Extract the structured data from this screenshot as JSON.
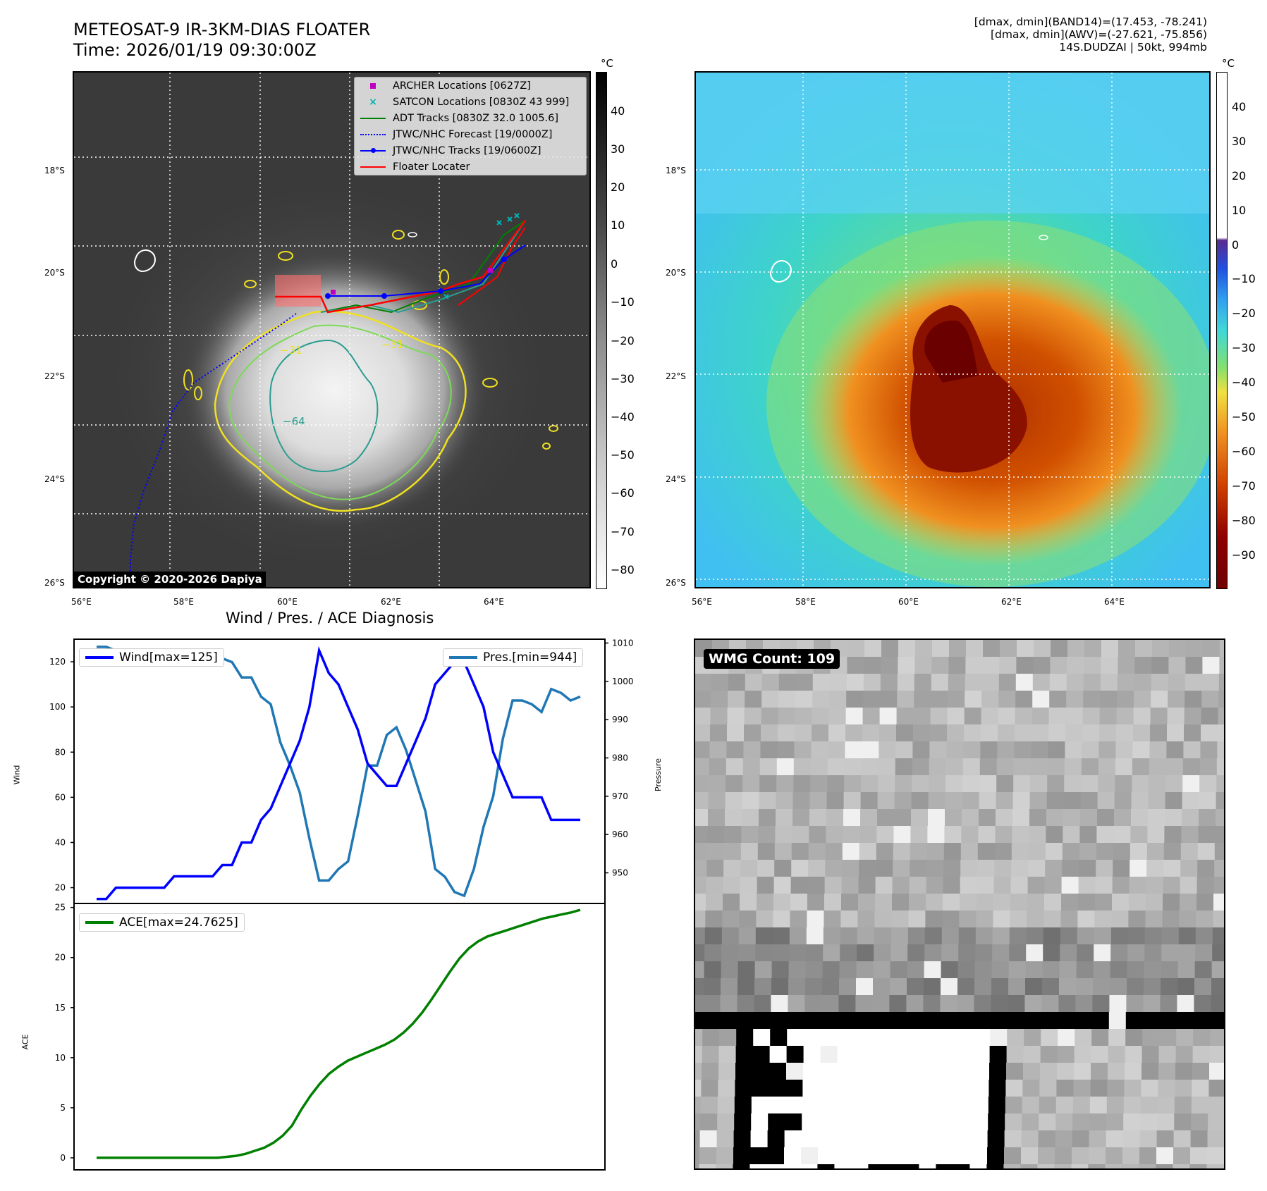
{
  "header": {
    "title_line1": "METEOSAT-9 IR-3KM-DIAS FLOATER",
    "title_line2": "Time: 2026/01/19 09:30:00Z",
    "info_line1": "[dmax, dmin](BAND14)=(17.453, -78.241)",
    "info_line2": "[dmax, dmin](AWV)=(-27.621, -75.856)",
    "info_line3": "14S.DUDZAI | 50kt, 994mb"
  },
  "map_axes": {
    "lat_labels": [
      "18°S",
      "20°S",
      "22°S",
      "24°S",
      "26°S"
    ],
    "lon_labels": [
      "56°E",
      "58°E",
      "60°E",
      "62°E",
      "64°E"
    ]
  },
  "ir_panel": {
    "colorbar_unit": "°C",
    "colorbar_ticks": [
      "40",
      "30",
      "20",
      "10",
      "0",
      "−10",
      "−20",
      "−30",
      "−40",
      "−50",
      "−60",
      "−70",
      "−80"
    ],
    "legend": [
      {
        "label": "ARCHER Locations [0627Z]",
        "icon": "magenta-square",
        "color": "#c000c0"
      },
      {
        "label": "SATCON Locations [0830Z 43 999]",
        "icon": "cyan-x",
        "color": "#00b4b4"
      },
      {
        "label": "ADT Tracks [0830Z 32.0 1005.6]",
        "icon": "green-line",
        "color": "#008000"
      },
      {
        "label": "JTWC/NHC Forecast [19/0000Z]",
        "icon": "blue-dotted-line",
        "color": "#0000ff"
      },
      {
        "label": "JTWC/NHC Tracks [19/0600Z]",
        "icon": "blue-line-dot",
        "color": "#0000ff"
      },
      {
        "label": "Floater Locater",
        "icon": "red-line",
        "color": "#ff0000"
      }
    ],
    "copyright": "Copyright © 2020-2026 Dapiya",
    "contour_labels": [
      "−64",
      "−31",
      "−31"
    ]
  },
  "awv_panel": {
    "colorbar_unit": "°C",
    "colorbar_ticks": [
      "40",
      "30",
      "20",
      "10",
      "0",
      "−10",
      "−20",
      "−30",
      "−40",
      "−50",
      "−60",
      "−70",
      "−80",
      "−90"
    ]
  },
  "diagnosis": {
    "title": "Wind / Pres. / ACE Diagnosis",
    "wind_legend": "Wind[max=125]",
    "pres_legend": "Pres.[min=944]",
    "ace_legend": "ACE[max=24.7625]",
    "wind_ylabel": "Wind",
    "pres_ylabel": "Pressure",
    "ace_ylabel": "ACE",
    "wind_ticks": [
      "20",
      "40",
      "60",
      "80",
      "100",
      "120"
    ],
    "pres_ticks": [
      "950",
      "960",
      "970",
      "980",
      "990",
      "1000",
      "1010"
    ],
    "ace_ticks": [
      "0",
      "5",
      "10",
      "15",
      "20",
      "25"
    ],
    "colors": {
      "wind": "#0000ff",
      "pres": "#1f77b4",
      "ace": "#008000"
    }
  },
  "wmg_panel": {
    "label": "WMG Count: 109"
  },
  "chart_data": [
    {
      "type": "line",
      "title": "",
      "xlabel": "",
      "ylabel": "Wind",
      "ylim": [
        13,
        130
      ],
      "series": [
        {
          "name": "Wind[max=125]",
          "values": [
            15,
            15,
            20,
            20,
            20,
            20,
            20,
            20,
            25,
            25,
            25,
            25,
            25,
            30,
            30,
            40,
            40,
            50,
            55,
            65,
            75,
            85,
            100,
            125,
            115,
            110,
            100,
            90,
            75,
            70,
            65,
            65,
            75,
            85,
            95,
            110,
            115,
            120,
            120,
            110,
            100,
            80,
            70,
            60,
            60,
            60,
            60,
            50,
            50,
            50,
            50
          ]
        }
      ]
    },
    {
      "type": "line",
      "ylabel": "Pressure",
      "ylim": [
        942,
        1011
      ],
      "series": [
        {
          "name": "Pres.[min=944]",
          "values": [
            1009,
            1009,
            1008,
            1006,
            1006,
            1006,
            1006,
            1006,
            1007,
            1007,
            1007,
            1007,
            1007,
            1006,
            1005,
            1001,
            1001,
            996,
            994,
            984,
            978,
            971,
            959,
            948,
            948,
            951,
            953,
            965,
            978,
            978,
            986,
            988,
            982,
            974,
            966,
            951,
            949,
            945,
            944,
            951,
            962,
            970,
            985,
            995,
            995,
            994,
            992,
            998,
            997,
            995,
            996
          ]
        }
      ]
    },
    {
      "type": "line",
      "ylabel": "ACE",
      "ylim": [
        -1.2,
        25.4
      ],
      "series": [
        {
          "name": "ACE[max=24.7625]",
          "values": [
            0,
            0,
            0,
            0,
            0,
            0,
            0,
            0,
            0,
            0,
            0,
            0,
            0,
            0,
            0.1,
            0.2,
            0.4,
            0.7,
            1.0,
            1.5,
            2.2,
            3.2,
            4.8,
            6.2,
            7.4,
            8.4,
            9.1,
            9.7,
            10.1,
            10.5,
            10.9,
            11.3,
            11.8,
            12.5,
            13.4,
            14.5,
            15.8,
            17.2,
            18.6,
            19.9,
            20.9,
            21.6,
            22.1,
            22.4,
            22.7,
            23.0,
            23.3,
            23.6,
            23.9,
            24.1,
            24.3,
            24.5,
            24.76
          ]
        }
      ]
    }
  ]
}
